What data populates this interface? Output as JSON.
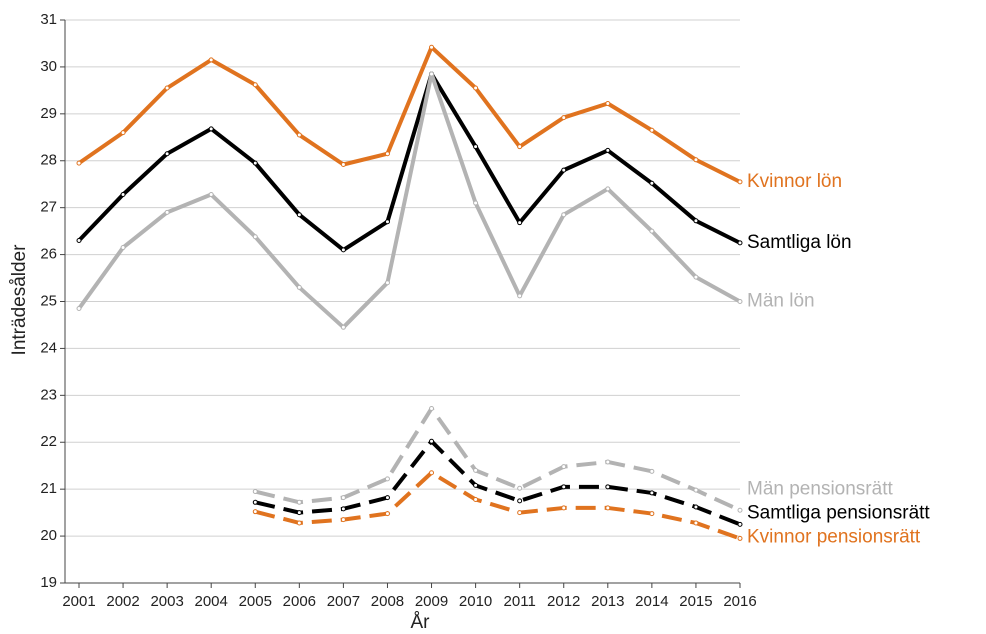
{
  "chart_data": {
    "type": "line",
    "x_label": "År",
    "y_label": "Inträdesålder",
    "x": [
      2001,
      2002,
      2003,
      2004,
      2005,
      2006,
      2007,
      2008,
      2009,
      2010,
      2011,
      2012,
      2013,
      2014,
      2015,
      2016
    ],
    "xlim": [
      2001,
      2016
    ],
    "ylim": [
      19,
      31
    ],
    "yticks": [
      19,
      20,
      21,
      22,
      23,
      24,
      25,
      26,
      27,
      28,
      29,
      30,
      31
    ],
    "grid": true,
    "series": [
      {
        "name": "Kvinnor lön",
        "color": "#e0731f",
        "style": "solid",
        "values": [
          27.95,
          28.6,
          29.55,
          30.15,
          29.62,
          28.55,
          27.92,
          28.15,
          30.42,
          29.55,
          28.3,
          28.92,
          29.22,
          28.65,
          28.02,
          27.55
        ]
      },
      {
        "name": "Samtliga lön",
        "color": "#000000",
        "style": "solid",
        "values": [
          26.3,
          27.28,
          28.15,
          28.68,
          27.95,
          26.85,
          26.1,
          26.7,
          29.85,
          28.3,
          26.68,
          27.8,
          28.22,
          27.52,
          26.72,
          26.25
        ]
      },
      {
        "name": "Män lön",
        "color": "#b3b3b3",
        "style": "solid",
        "values": [
          24.85,
          26.15,
          26.9,
          27.28,
          26.38,
          25.3,
          24.45,
          25.4,
          29.85,
          27.1,
          25.12,
          26.85,
          27.4,
          26.5,
          25.52,
          25.0
        ]
      },
      {
        "name": "Män pensionsrätt",
        "color": "#b3b3b3",
        "style": "dashed",
        "values": [
          null,
          null,
          null,
          null,
          20.95,
          20.72,
          20.82,
          21.22,
          22.72,
          21.4,
          21.02,
          21.48,
          21.58,
          21.38,
          20.98,
          20.55
        ]
      },
      {
        "name": "Samtliga pensionsrätt",
        "color": "#000000",
        "style": "dashed",
        "values": [
          null,
          null,
          null,
          null,
          20.72,
          20.5,
          20.58,
          20.82,
          22.02,
          21.08,
          20.75,
          21.05,
          21.05,
          20.92,
          20.62,
          20.25
        ]
      },
      {
        "name": "Kvinnor pensionsrätt",
        "color": "#e0731f",
        "style": "dashed",
        "values": [
          null,
          null,
          null,
          null,
          20.52,
          20.28,
          20.35,
          20.48,
          21.35,
          20.78,
          20.5,
          20.6,
          20.6,
          20.48,
          20.28,
          19.95
        ]
      }
    ]
  }
}
